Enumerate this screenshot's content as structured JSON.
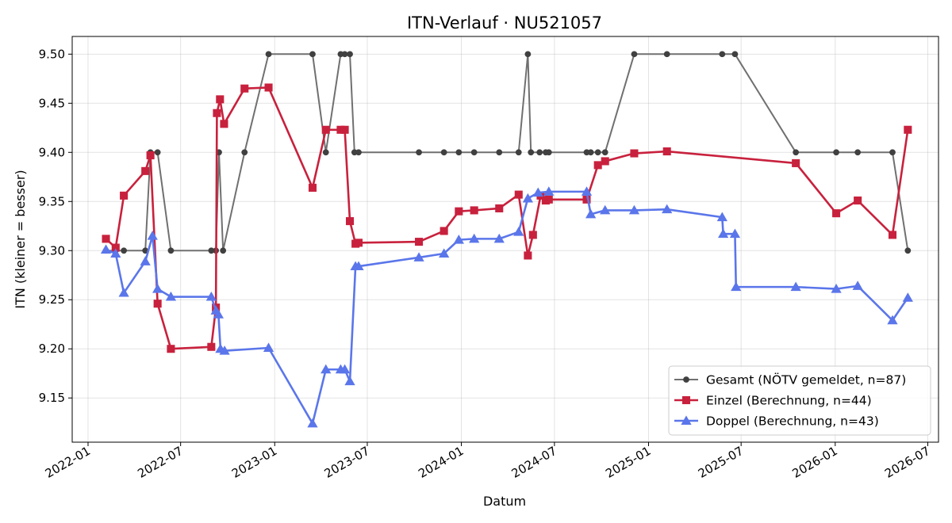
{
  "chart_data": {
    "type": "line",
    "title": "ITN-Verlauf · NU521057",
    "xlabel": "Datum",
    "ylabel": "ITN  (kleiner = besser)",
    "xlim": [
      "2021-12-01",
      "2026-07-22"
    ],
    "ylim": [
      9.105,
      9.518
    ],
    "grid": true,
    "legend_position": "lower-right",
    "x_ticks": [
      "2022-01",
      "2022-07",
      "2023-01",
      "2023-07",
      "2024-01",
      "2024-07",
      "2025-01",
      "2025-07",
      "2026-01",
      "2026-07"
    ],
    "y_ticks": [
      "9.15",
      "9.20",
      "9.25",
      "9.30",
      "9.35",
      "9.40",
      "9.45",
      "9.50"
    ],
    "series": [
      {
        "name": "Gesamt (NÖTV gemeldet, n=87)",
        "color": "#707070",
        "marker_color": "#404040",
        "marker": "circle",
        "points": [
          [
            "2022-02-05",
            9.3
          ],
          [
            "2022-02-24",
            9.3
          ],
          [
            "2022-03-12",
            9.3
          ],
          [
            "2022-04-23",
            9.3
          ],
          [
            "2022-05-03",
            9.4
          ],
          [
            "2022-05-17",
            9.4
          ],
          [
            "2022-06-12",
            9.3
          ],
          [
            "2022-08-30",
            9.3
          ],
          [
            "2022-09-08",
            9.3
          ],
          [
            "2022-09-14",
            9.4
          ],
          [
            "2022-09-22",
            9.3
          ],
          [
            "2022-11-03",
            9.4
          ],
          [
            "2022-12-20",
            9.5
          ],
          [
            "2023-03-16",
            9.5
          ],
          [
            "2023-04-11",
            9.4
          ],
          [
            "2023-05-10",
            9.5
          ],
          [
            "2023-05-18",
            9.5
          ],
          [
            "2023-05-28",
            9.5
          ],
          [
            "2023-06-06",
            9.4
          ],
          [
            "2023-06-14",
            9.4
          ],
          [
            "2023-10-10",
            9.4
          ],
          [
            "2023-11-28",
            9.4
          ],
          [
            "2023-12-27",
            9.4
          ],
          [
            "2024-01-26",
            9.4
          ],
          [
            "2024-03-15",
            9.4
          ],
          [
            "2024-04-22",
            9.4
          ],
          [
            "2024-05-10",
            9.5
          ],
          [
            "2024-05-16",
            9.4
          ],
          [
            "2024-06-02",
            9.4
          ],
          [
            "2024-06-14",
            9.4
          ],
          [
            "2024-06-20",
            9.4
          ],
          [
            "2024-09-02",
            9.4
          ],
          [
            "2024-09-10",
            9.4
          ],
          [
            "2024-09-24",
            9.4
          ],
          [
            "2024-10-08",
            9.4
          ],
          [
            "2024-12-04",
            9.5
          ],
          [
            "2025-02-06",
            9.5
          ],
          [
            "2025-05-25",
            9.5
          ],
          [
            "2025-06-19",
            9.5
          ],
          [
            "2025-10-16",
            9.4
          ],
          [
            "2026-01-03",
            9.4
          ],
          [
            "2026-02-14",
            9.4
          ],
          [
            "2026-04-23",
            9.4
          ],
          [
            "2026-05-23",
            9.3
          ]
        ]
      },
      {
        "name": "Einzel (Berechnung, n=44)",
        "color": "#c8213d",
        "marker": "square",
        "points": [
          [
            "2022-02-05",
            9.312
          ],
          [
            "2022-02-24",
            9.303
          ],
          [
            "2022-03-12",
            9.356
          ],
          [
            "2022-04-23",
            9.381
          ],
          [
            "2022-05-03",
            9.397
          ],
          [
            "2022-05-17",
            9.246
          ],
          [
            "2022-06-12",
            9.2
          ],
          [
            "2022-08-30",
            9.202
          ],
          [
            "2022-09-08",
            9.242
          ],
          [
            "2022-09-10",
            9.44
          ],
          [
            "2022-09-16",
            9.454
          ],
          [
            "2022-09-24",
            9.429
          ],
          [
            "2022-11-03",
            9.465
          ],
          [
            "2022-12-20",
            9.466
          ],
          [
            "2023-03-16",
            9.364
          ],
          [
            "2023-04-11",
            9.423
          ],
          [
            "2023-05-10",
            9.423
          ],
          [
            "2023-05-18",
            9.423
          ],
          [
            "2023-05-28",
            9.33
          ],
          [
            "2023-06-08",
            9.307
          ],
          [
            "2023-06-14",
            9.308
          ],
          [
            "2023-10-10",
            9.309
          ],
          [
            "2023-11-28",
            9.32
          ],
          [
            "2023-12-27",
            9.34
          ],
          [
            "2024-01-26",
            9.341
          ],
          [
            "2024-03-15",
            9.343
          ],
          [
            "2024-04-22",
            9.357
          ],
          [
            "2024-05-10",
            9.295
          ],
          [
            "2024-05-20",
            9.316
          ],
          [
            "2024-06-04",
            9.356
          ],
          [
            "2024-06-14",
            9.351
          ],
          [
            "2024-06-20",
            9.352
          ],
          [
            "2024-09-02",
            9.352
          ],
          [
            "2024-09-24",
            9.387
          ],
          [
            "2024-10-08",
            9.391
          ],
          [
            "2024-12-04",
            9.399
          ],
          [
            "2025-02-06",
            9.401
          ],
          [
            "2025-10-16",
            9.389
          ],
          [
            "2026-01-03",
            9.338
          ],
          [
            "2026-02-14",
            9.351
          ],
          [
            "2026-04-23",
            9.316
          ],
          [
            "2026-05-23",
            9.423
          ]
        ]
      },
      {
        "name": "Doppel (Berechnung, n=43)",
        "color": "#5b76ea",
        "marker": "triangle",
        "points": [
          [
            "2022-02-05",
            9.301
          ],
          [
            "2022-02-24",
            9.297
          ],
          [
            "2022-03-12",
            9.257
          ],
          [
            "2022-04-23",
            9.289
          ],
          [
            "2022-05-07",
            9.315
          ],
          [
            "2022-05-17",
            9.261
          ],
          [
            "2022-06-12",
            9.253
          ],
          [
            "2022-08-30",
            9.253
          ],
          [
            "2022-09-08",
            9.239
          ],
          [
            "2022-09-13",
            9.235
          ],
          [
            "2022-09-17",
            9.2
          ],
          [
            "2022-09-25",
            9.198
          ],
          [
            "2022-12-20",
            9.201
          ],
          [
            "2023-03-16",
            9.124
          ],
          [
            "2023-04-11",
            9.179
          ],
          [
            "2023-05-10",
            9.179
          ],
          [
            "2023-05-18",
            9.179
          ],
          [
            "2023-05-28",
            9.167
          ],
          [
            "2023-06-08",
            9.284
          ],
          [
            "2023-06-14",
            9.284
          ],
          [
            "2023-10-10",
            9.293
          ],
          [
            "2023-11-28",
            9.297
          ],
          [
            "2023-12-27",
            9.311
          ],
          [
            "2024-01-26",
            9.312
          ],
          [
            "2024-03-15",
            9.312
          ],
          [
            "2024-04-22",
            9.319
          ],
          [
            "2024-05-10",
            9.353
          ],
          [
            "2024-05-30",
            9.359
          ],
          [
            "2024-06-20",
            9.36
          ],
          [
            "2024-09-02",
            9.36
          ],
          [
            "2024-09-10",
            9.337
          ],
          [
            "2024-10-08",
            9.341
          ],
          [
            "2024-12-04",
            9.341
          ],
          [
            "2025-02-06",
            9.342
          ],
          [
            "2025-05-25",
            9.334
          ],
          [
            "2025-05-27",
            9.317
          ],
          [
            "2025-06-19",
            9.317
          ],
          [
            "2025-06-21",
            9.263
          ],
          [
            "2025-10-16",
            9.263
          ],
          [
            "2026-01-03",
            9.261
          ],
          [
            "2026-02-14",
            9.264
          ],
          [
            "2026-04-23",
            9.229
          ],
          [
            "2026-05-23",
            9.252
          ]
        ]
      }
    ]
  }
}
